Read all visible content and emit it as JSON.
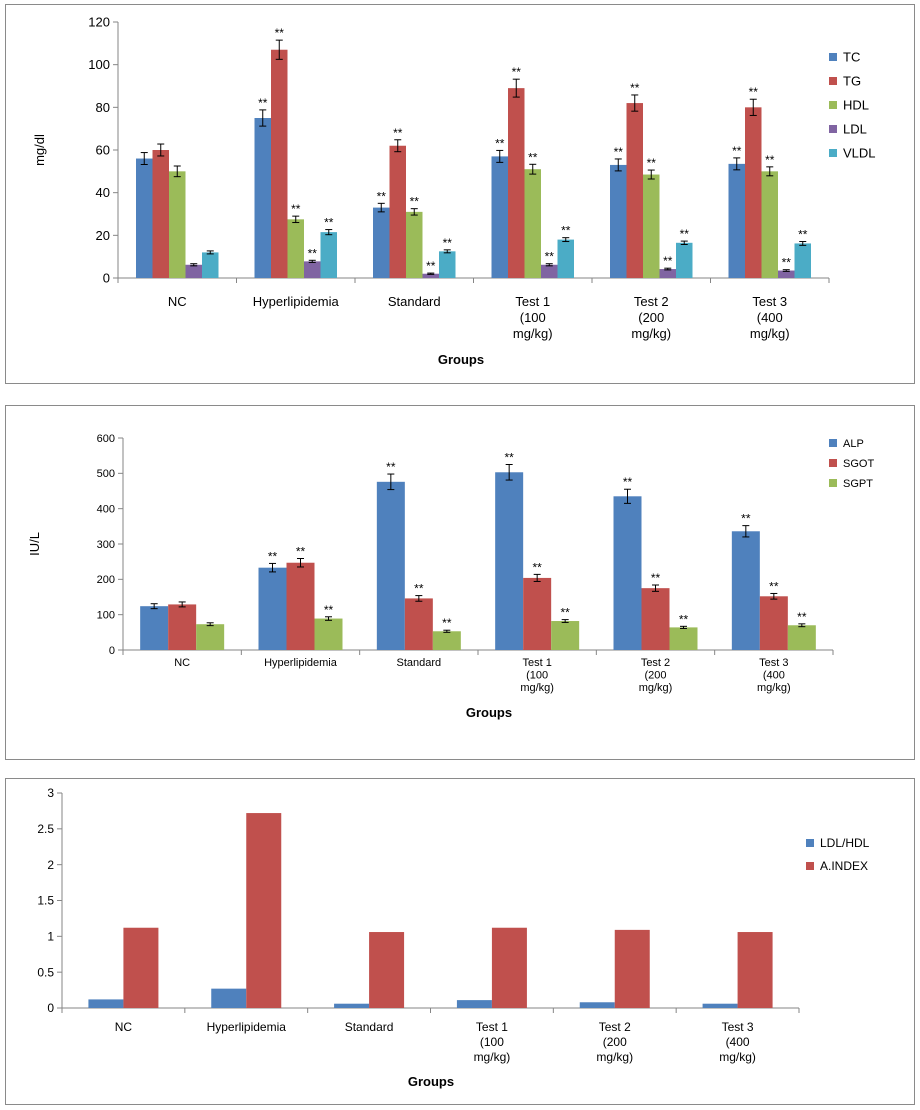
{
  "chart_data": [
    {
      "type": "bar",
      "title": "",
      "xlabel": "Groups",
      "ylabel": "mg/dl",
      "ylim": [
        0,
        120
      ],
      "yticks": [
        0,
        20,
        40,
        60,
        80,
        100,
        120
      ],
      "legend_position": "right",
      "categories": [
        [
          "NC"
        ],
        [
          "Hyperlipidemia"
        ],
        [
          "Standard"
        ],
        [
          "Test 1",
          "(100",
          "mg/kg)"
        ],
        [
          "Test 2",
          "(200",
          "mg/kg)"
        ],
        [
          "Test 3",
          "(400",
          "mg/kg)"
        ]
      ],
      "series": [
        {
          "name": "TC",
          "color": "#4f81bd",
          "values": [
            56,
            75,
            33,
            57,
            53,
            53.5
          ],
          "errors": [
            2.8,
            3.8,
            2,
            2.8,
            2.8,
            2.8
          ],
          "marks": [
            "",
            "**",
            "**",
            "**",
            "**",
            "**"
          ]
        },
        {
          "name": "TG",
          "color": "#c0504d",
          "values": [
            60,
            107,
            62,
            89,
            82,
            80
          ],
          "errors": [
            2.8,
            4.5,
            2.8,
            4.2,
            3.8,
            3.8
          ],
          "marks": [
            "",
            "**",
            "**",
            "**",
            "**",
            "**"
          ]
        },
        {
          "name": "HDL",
          "color": "#9bbb59",
          "values": [
            50,
            27.5,
            31,
            51,
            48.5,
            50
          ],
          "errors": [
            2.5,
            1.5,
            1.5,
            2.3,
            2.1,
            2.1
          ],
          "marks": [
            "",
            "**",
            "**",
            "**",
            "**",
            "**"
          ]
        },
        {
          "name": "LDL",
          "color": "#8064a2",
          "values": [
            6.2,
            7.8,
            2,
            6.2,
            4.2,
            3.5
          ],
          "errors": [
            0.5,
            0.5,
            0.3,
            0.5,
            0.4,
            0.4
          ],
          "marks": [
            "",
            "**",
            "**",
            "**",
            "**",
            "**"
          ]
        },
        {
          "name": "VLDL",
          "color": "#4bacc6",
          "values": [
            12,
            21.5,
            12.5,
            18,
            16.5,
            16.2
          ],
          "errors": [
            0.7,
            1.2,
            0.7,
            0.9,
            0.8,
            0.9
          ],
          "marks": [
            "",
            "**",
            "**",
            "**",
            "**",
            "**"
          ]
        }
      ]
    },
    {
      "type": "bar",
      "title": "",
      "xlabel": "Groups",
      "ylabel": "IU/L",
      "ylim": [
        0,
        600
      ],
      "yticks": [
        0,
        100,
        200,
        300,
        400,
        500,
        600
      ],
      "legend_position": "right",
      "categories": [
        [
          "NC"
        ],
        [
          "Hyperlipidemia"
        ],
        [
          "Standard"
        ],
        [
          "Test 1",
          "(100",
          "mg/kg)"
        ],
        [
          "Test 2",
          "(200",
          "mg/kg)"
        ],
        [
          "Test 3",
          "(400",
          "mg/kg)"
        ]
      ],
      "series": [
        {
          "name": "ALP",
          "color": "#4f81bd",
          "values": [
            124,
            233,
            476,
            503,
            435,
            336
          ],
          "errors": [
            7,
            12,
            22,
            22,
            20,
            16
          ],
          "marks": [
            "",
            "**",
            "**",
            "**",
            "**",
            "**"
          ]
        },
        {
          "name": "SGOT",
          "color": "#c0504d",
          "values": [
            129,
            247,
            146,
            204,
            175,
            152
          ],
          "errors": [
            7,
            12,
            8,
            10,
            9,
            8
          ],
          "marks": [
            "",
            "**",
            "**",
            "**",
            "**",
            "**"
          ]
        },
        {
          "name": "SGPT",
          "color": "#9bbb59",
          "values": [
            73,
            89,
            53,
            82,
            64,
            70
          ],
          "errors": [
            4,
            5,
            3,
            4,
            3,
            4
          ],
          "marks": [
            "",
            "**",
            "**",
            "**",
            "**",
            "**"
          ]
        }
      ]
    },
    {
      "type": "bar",
      "title": "",
      "xlabel": "Groups",
      "ylabel": "",
      "ylim": [
        0,
        3
      ],
      "yticks": [
        0,
        0.5,
        1,
        1.5,
        2,
        2.5,
        3
      ],
      "legend_position": "right",
      "categories": [
        [
          "NC"
        ],
        [
          "Hyperlipidemia"
        ],
        [
          "Standard"
        ],
        [
          "Test 1",
          "(100",
          "mg/kg)"
        ],
        [
          "Test 2",
          "(200",
          "mg/kg)"
        ],
        [
          "Test 3",
          "(400",
          "mg/kg)"
        ]
      ],
      "series": [
        {
          "name": "LDL/HDL",
          "color": "#4f81bd",
          "values": [
            0.12,
            0.27,
            0.06,
            0.11,
            0.08,
            0.06
          ],
          "errors": [],
          "marks": []
        },
        {
          "name": "A.INDEX",
          "color": "#c0504d",
          "values": [
            1.12,
            2.72,
            1.06,
            1.12,
            1.09,
            1.06
          ],
          "errors": [],
          "marks": []
        }
      ]
    }
  ]
}
